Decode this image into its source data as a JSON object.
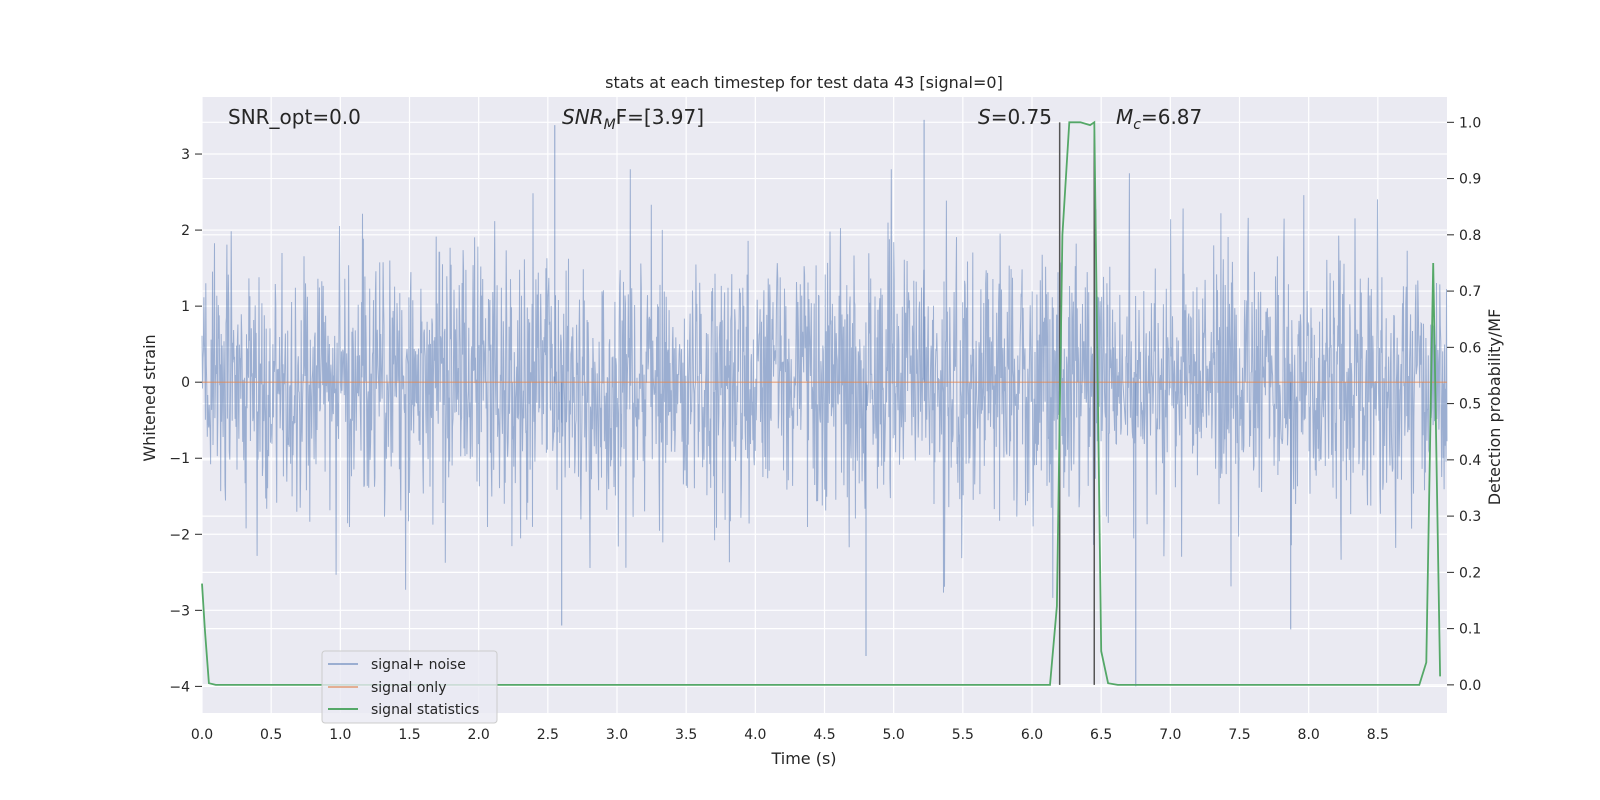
{
  "chart_data": {
    "type": "line",
    "title": "stats at each timestep for test data 43 [signal=0]",
    "xlabel": "Time (s)",
    "ylabel": "Whitened strain",
    "y2label": "Detection probability/MF",
    "xlim": [
      0,
      9.0
    ],
    "ylim": [
      -4.35,
      3.75
    ],
    "y2lim": [
      -0.05,
      1.045
    ],
    "grid": true,
    "x_ticks": [
      "0.0",
      "0.5",
      "1.0",
      "1.5",
      "2.0",
      "2.5",
      "3.0",
      "3.5",
      "4.0",
      "4.5",
      "5.0",
      "5.5",
      "6.0",
      "6.5",
      "7.0",
      "7.5",
      "8.0",
      "8.5"
    ],
    "y_ticks": [
      "3",
      "2",
      "1",
      "0",
      "−1",
      "−2",
      "−3",
      "−4"
    ],
    "y2_ticks": [
      "1.0",
      "0.9",
      "0.8",
      "0.7",
      "0.6",
      "0.5",
      "0.4",
      "0.3",
      "0.2",
      "0.1",
      "0.0"
    ],
    "annotations": {
      "snr_opt": "SNR_opt=0.0",
      "snr_mf_label": "SNR",
      "snr_mf_sub": "M",
      "snr_mf_rest": "F=[3.97]",
      "s_label": "S",
      "s_value": "=0.75",
      "mc_label": "M",
      "mc_sub": "c",
      "mc_value": "=6.87"
    },
    "vlines_x": [
      6.2,
      6.45
    ],
    "legend": {
      "placement": "lower-left",
      "entries": [
        "signal+ noise",
        "signal only",
        "signal statistics"
      ]
    },
    "series": [
      {
        "name": "signal+ noise",
        "color": "#4c72b0",
        "style": "dense noise, approximately Gaussian, sigma ~0.9, range about -4 to 3.4",
        "peaks": [
          {
            "x": 2.55,
            "y": 3.38
          },
          {
            "x": 5.22,
            "y": 3.45
          },
          {
            "x": 4.8,
            "y": -3.6
          },
          {
            "x": 6.75,
            "y": -4.0
          },
          {
            "x": 2.6,
            "y": -3.2
          },
          {
            "x": 7.87,
            "y": -3.25
          }
        ]
      },
      {
        "name": "signal only",
        "color": "#dd8452",
        "x": [
          0,
          9.0
        ],
        "y": [
          0,
          0
        ]
      },
      {
        "name": "signal statistics",
        "color": "#55a868",
        "axis": "right",
        "x": [
          0.0,
          0.02,
          0.05,
          0.1,
          0.15,
          6.13,
          6.18,
          6.22,
          6.27,
          6.35,
          6.42,
          6.45,
          6.5,
          6.55,
          6.62,
          6.65,
          8.8,
          8.85,
          8.9,
          8.95
        ],
        "y": [
          0.18,
          0.1,
          0.003,
          0.0,
          0.0,
          0.0,
          0.14,
          0.8,
          1.0,
          1.0,
          0.995,
          1.0,
          0.06,
          0.003,
          0.0,
          0.0,
          0.0,
          0.04,
          0.75,
          0.015
        ]
      }
    ]
  }
}
